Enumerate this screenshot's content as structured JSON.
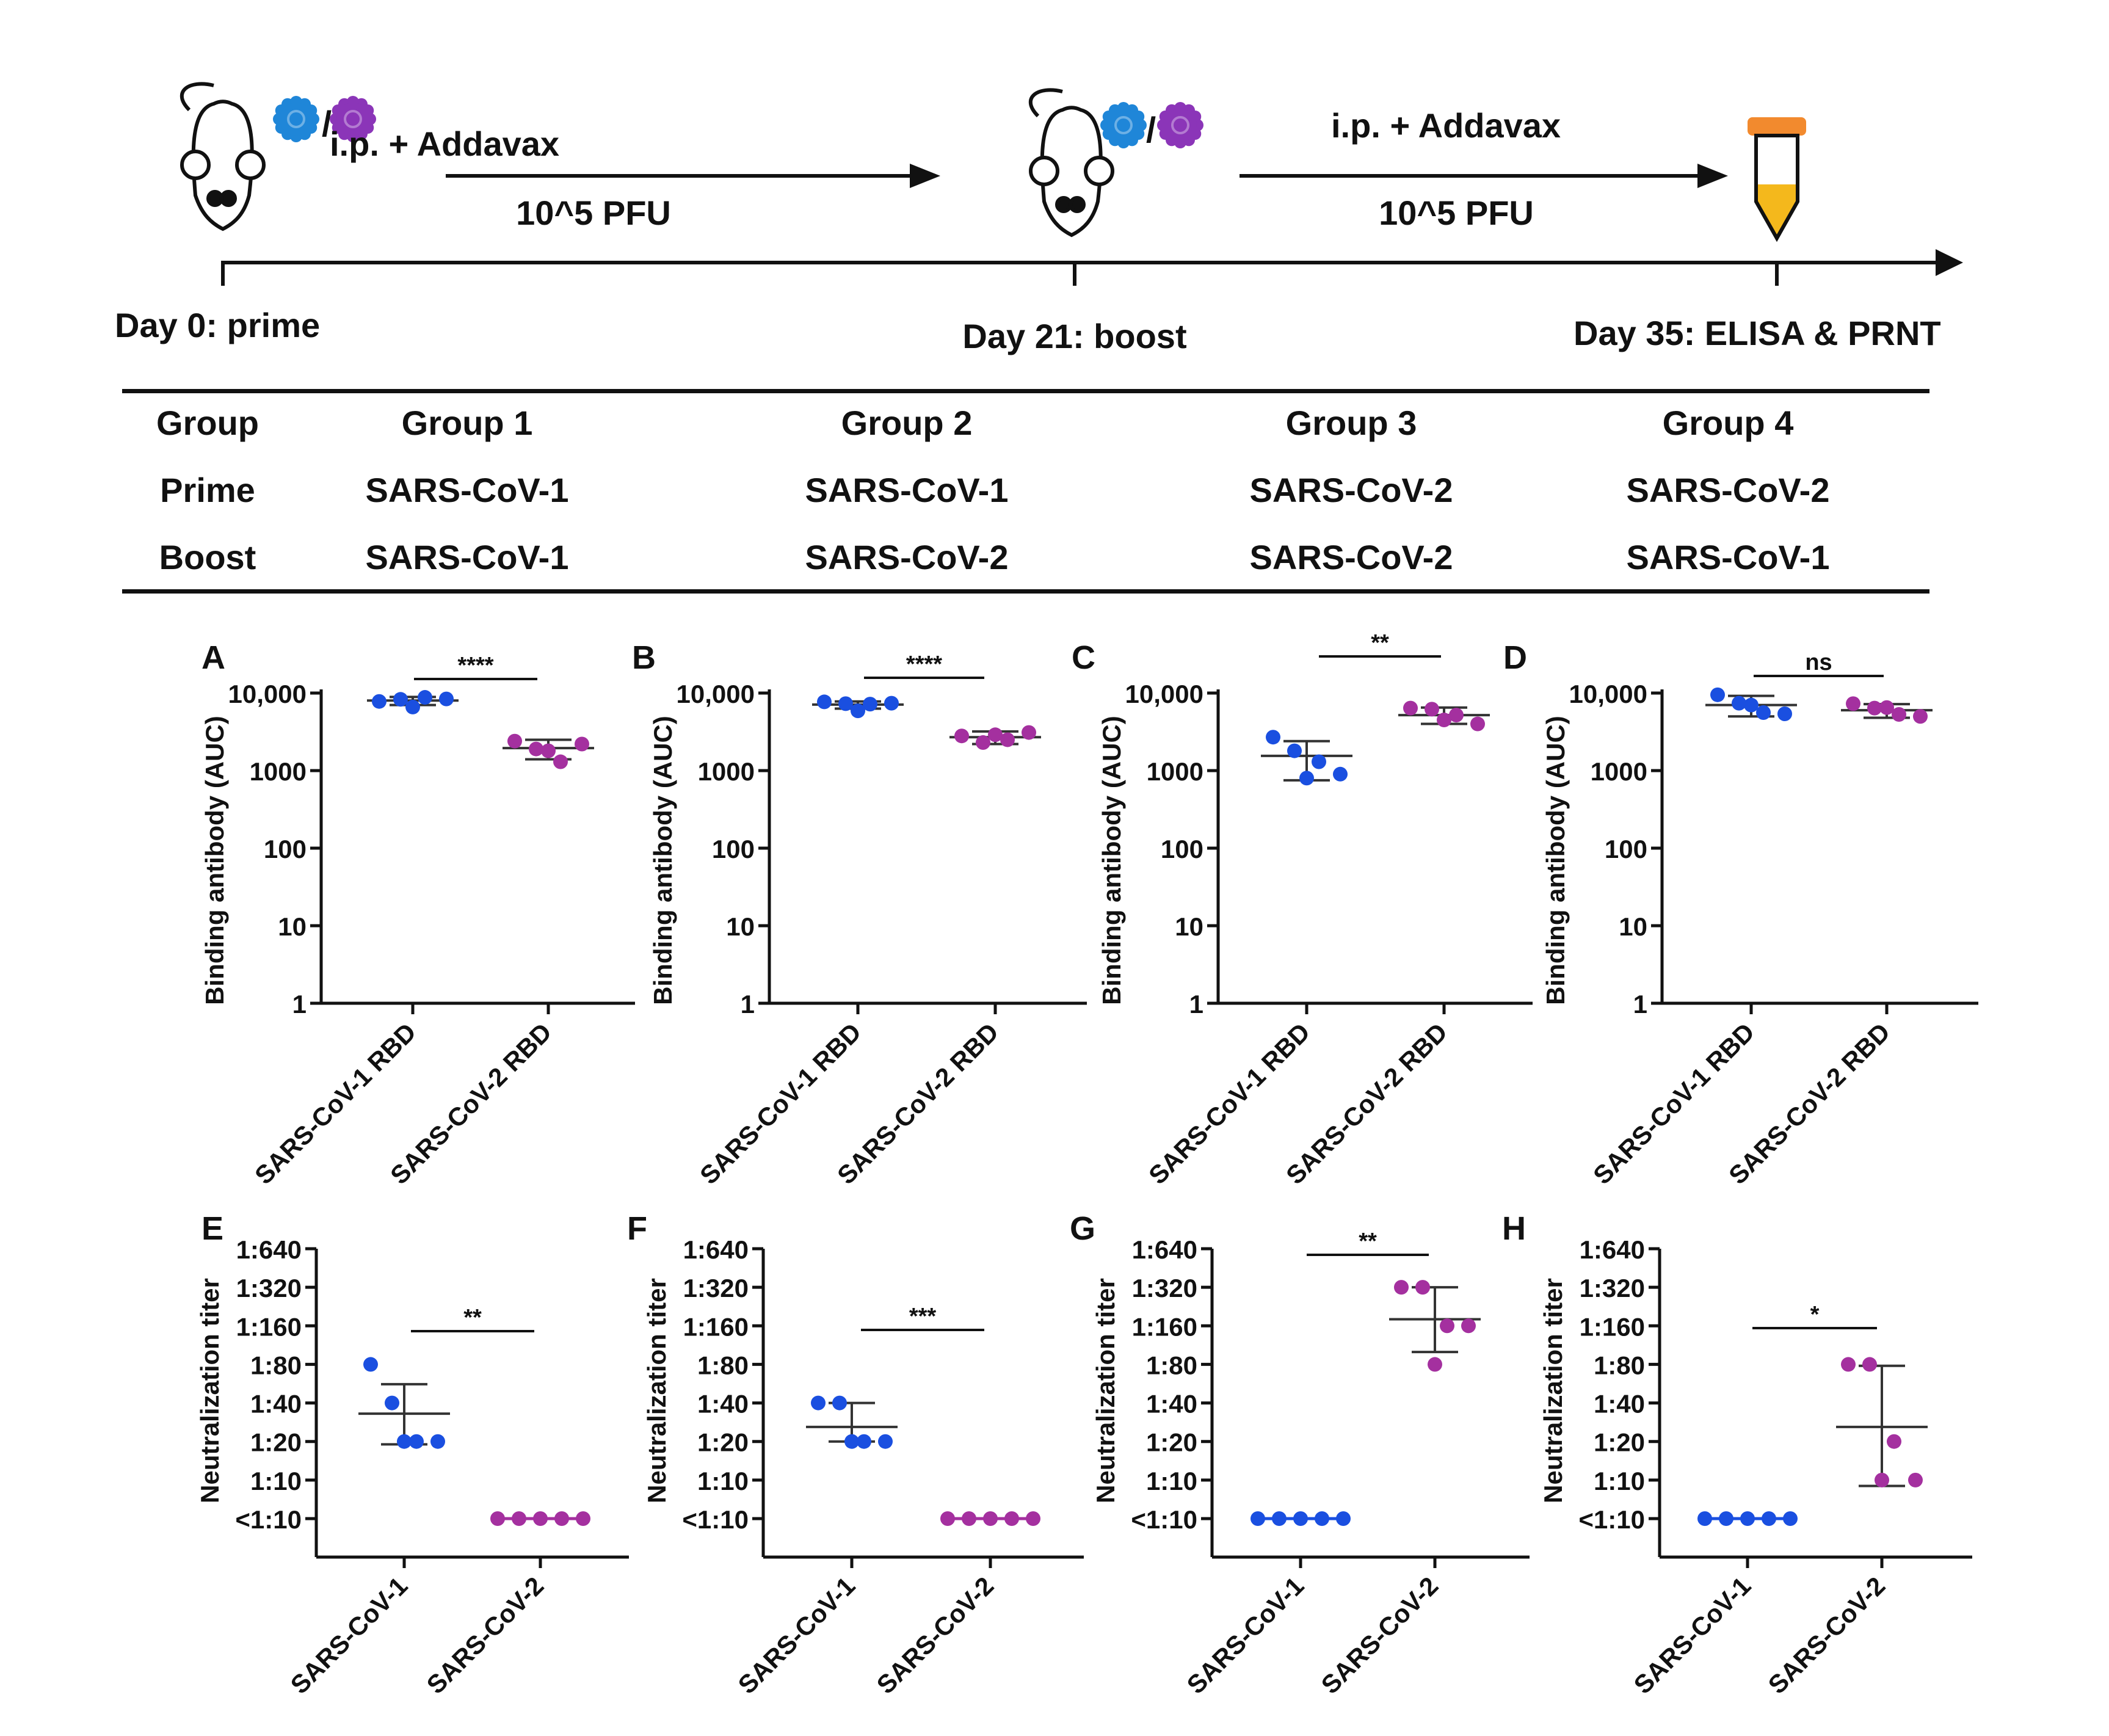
{
  "colors": {
    "sars1": "#1a4fe0",
    "sars2": "#a4309f",
    "virus_blue": "#1f86d8",
    "virus_purple": "#8b35b8",
    "tube_cap": "#f28a2e",
    "tube_fill": "#f4b81c",
    "ink": "#111111"
  },
  "timeline": {
    "arrow1": {
      "top": "i.p. + Addavax",
      "bottom": "10^5 PFU"
    },
    "arrow2": {
      "top": "i.p. + Addavax",
      "bottom": "10^5 PFU"
    },
    "slash": "/",
    "milestones": [
      "Day 0: prime",
      "Day 21: boost",
      "Day 35: ELISA & PRNT"
    ],
    "icons": [
      "mouse-icon",
      "virus-icon",
      "tube-icon"
    ]
  },
  "table": {
    "row_labels": [
      "Group",
      "Prime",
      "Boost"
    ],
    "groups": [
      {
        "name": "Group 1",
        "prime": "SARS-CoV-1",
        "boost": "SARS-CoV-1"
      },
      {
        "name": "Group 2",
        "prime": "SARS-CoV-1",
        "boost": "SARS-CoV-2"
      },
      {
        "name": "Group 3",
        "prime": "SARS-CoV-2",
        "boost": "SARS-CoV-2"
      },
      {
        "name": "Group 4",
        "prime": "SARS-CoV-2",
        "boost": "SARS-CoV-1"
      }
    ]
  },
  "chart_data": [
    {
      "panel": "A",
      "type": "scatter",
      "scale": "log",
      "ylabel": "Binding antibody (AUC)",
      "ylim": [
        1,
        10000
      ],
      "ytick_values": [
        1,
        10,
        100,
        1000,
        10000
      ],
      "ytick_labels": [
        "1",
        "10",
        "100",
        "1000",
        "10,000"
      ],
      "categories": [
        "SARS-CoV-1 RBD",
        "SARS-CoV-2 RBD"
      ],
      "series": [
        {
          "name": "SARS-CoV-1 RBD",
          "values": [
            7800,
            8300,
            8800,
            8400,
            6600
          ],
          "mean": 8000,
          "sd_low": 7000,
          "sd_high": 8900
        },
        {
          "name": "SARS-CoV-2 RBD",
          "values": [
            2400,
            1900,
            1300,
            2200,
            1800
          ],
          "mean": 1950,
          "sd_low": 1400,
          "sd_high": 2500
        }
      ],
      "significance": "****"
    },
    {
      "panel": "B",
      "type": "scatter",
      "scale": "log",
      "ylabel": "Binding antibody (AUC)",
      "ylim": [
        1,
        10000
      ],
      "ytick_values": [
        1,
        10,
        100,
        1000,
        10000
      ],
      "ytick_labels": [
        "1",
        "10",
        "100",
        "1000",
        "10,000"
      ],
      "categories": [
        "SARS-CoV-1 RBD",
        "SARS-CoV-2 RBD"
      ],
      "series": [
        {
          "name": "SARS-CoV-1 RBD",
          "values": [
            7700,
            7300,
            7200,
            7400,
            5900
          ],
          "mean": 7100,
          "sd_low": 6300,
          "sd_high": 7800
        },
        {
          "name": "SARS-CoV-2 RBD",
          "values": [
            2800,
            2300,
            2500,
            3100,
            2900
          ],
          "mean": 2700,
          "sd_low": 2200,
          "sd_high": 3200
        }
      ],
      "significance": "****"
    },
    {
      "panel": "C",
      "type": "scatter",
      "scale": "log",
      "ylabel": "Binding antibody (AUC)",
      "ylim": [
        1,
        10000
      ],
      "ytick_values": [
        1,
        10,
        100,
        1000,
        10000
      ],
      "ytick_labels": [
        "1",
        "10",
        "100",
        "1000",
        "10,000"
      ],
      "categories": [
        "SARS-CoV-1 RBD",
        "SARS-CoV-2 RBD"
      ],
      "series": [
        {
          "name": "SARS-CoV-1 RBD",
          "values": [
            2700,
            1800,
            1300,
            900,
            800
          ],
          "mean": 1550,
          "sd_low": 750,
          "sd_high": 2400
        },
        {
          "name": "SARS-CoV-2 RBD",
          "values": [
            6400,
            6200,
            5200,
            4000,
            4500
          ],
          "mean": 5200,
          "sd_low": 4000,
          "sd_high": 6500
        }
      ],
      "significance": "**"
    },
    {
      "panel": "D",
      "type": "scatter",
      "scale": "log",
      "ylabel": "Binding antibody (AUC)",
      "ylim": [
        1,
        10000
      ],
      "ytick_values": [
        1,
        10,
        100,
        1000,
        10000
      ],
      "ytick_labels": [
        "1",
        "10",
        "100",
        "1000",
        "10,000"
      ],
      "categories": [
        "SARS-CoV-1 RBD",
        "SARS-CoV-2 RBD"
      ],
      "series": [
        {
          "name": "SARS-CoV-1 RBD",
          "values": [
            9500,
            7400,
            5600,
            5400,
            7000
          ],
          "mean": 7000,
          "sd_low": 5000,
          "sd_high": 9200
        },
        {
          "name": "SARS-CoV-2 RBD",
          "values": [
            7300,
            6400,
            5300,
            5000,
            6500
          ],
          "mean": 6000,
          "sd_low": 4800,
          "sd_high": 7200
        }
      ],
      "significance": "ns"
    },
    {
      "panel": "E",
      "type": "scatter",
      "scale": "titer",
      "ylabel": "Neutralization titer",
      "ytick_labels": [
        "<1:10",
        "1:10",
        "1:20",
        "1:40",
        "1:80",
        "1:160",
        "1:320",
        "1:640"
      ],
      "categories": [
        "SARS-CoV-1",
        "SARS-CoV-2"
      ],
      "series": [
        {
          "name": "SARS-CoV-1",
          "values": [
            "1:80",
            "1:40",
            "1:20",
            "1:20",
            "1:20"
          ],
          "mean": "1:33",
          "sd_low": "1:19",
          "sd_high": "1:56"
        },
        {
          "name": "SARS-CoV-2",
          "values": [
            "<1:10",
            "<1:10",
            "<1:10",
            "<1:10",
            "<1:10"
          ]
        }
      ],
      "significance": "**"
    },
    {
      "panel": "F",
      "type": "scatter",
      "scale": "titer",
      "ylabel": "Neutralization titer",
      "ytick_labels": [
        "<1:10",
        "1:10",
        "1:20",
        "1:40",
        "1:80",
        "1:160",
        "1:320",
        "1:640"
      ],
      "categories": [
        "SARS-CoV-1",
        "SARS-CoV-2"
      ],
      "series": [
        {
          "name": "SARS-CoV-1",
          "values": [
            "1:40",
            "1:40",
            "1:20",
            "1:20",
            "1:20"
          ],
          "mean": "1:26",
          "sd_low": "1:20",
          "sd_high": "1:40"
        },
        {
          "name": "SARS-CoV-2",
          "values": [
            "<1:10",
            "<1:10",
            "<1:10",
            "<1:10",
            "<1:10"
          ]
        }
      ],
      "significance": "***"
    },
    {
      "panel": "G",
      "type": "scatter",
      "scale": "titer",
      "ylabel": "Neutralization titer",
      "ytick_labels": [
        "<1:10",
        "1:10",
        "1:20",
        "1:40",
        "1:80",
        "1:160",
        "1:320",
        "1:640"
      ],
      "categories": [
        "SARS-CoV-1",
        "SARS-CoV-2"
      ],
      "series": [
        {
          "name": "SARS-CoV-1",
          "values": [
            "<1:10",
            "<1:10",
            "<1:10",
            "<1:10",
            "<1:10"
          ]
        },
        {
          "name": "SARS-CoV-2",
          "values": [
            "1:320",
            "1:320",
            "1:160",
            "1:160",
            "1:80"
          ],
          "mean": "1:180",
          "sd_low": "1:100",
          "sd_high": "1:320"
        }
      ],
      "significance": "**"
    },
    {
      "panel": "H",
      "type": "scatter",
      "scale": "titer",
      "ylabel": "Neutralization titer",
      "ytick_labels": [
        "<1:10",
        "1:10",
        "1:20",
        "1:40",
        "1:80",
        "1:160",
        "1:320",
        "1:640"
      ],
      "categories": [
        "SARS-CoV-1",
        "SARS-CoV-2"
      ],
      "series": [
        {
          "name": "SARS-CoV-1",
          "values": [
            "<1:10",
            "<1:10",
            "<1:10",
            "<1:10",
            "<1:10"
          ]
        },
        {
          "name": "SARS-CoV-2",
          "values": [
            "1:80",
            "1:80",
            "1:20",
            "1:10",
            "1:10"
          ],
          "mean": "1:26",
          "sd_low": "1:9",
          "sd_high": "1:78"
        }
      ],
      "significance": "*"
    }
  ]
}
